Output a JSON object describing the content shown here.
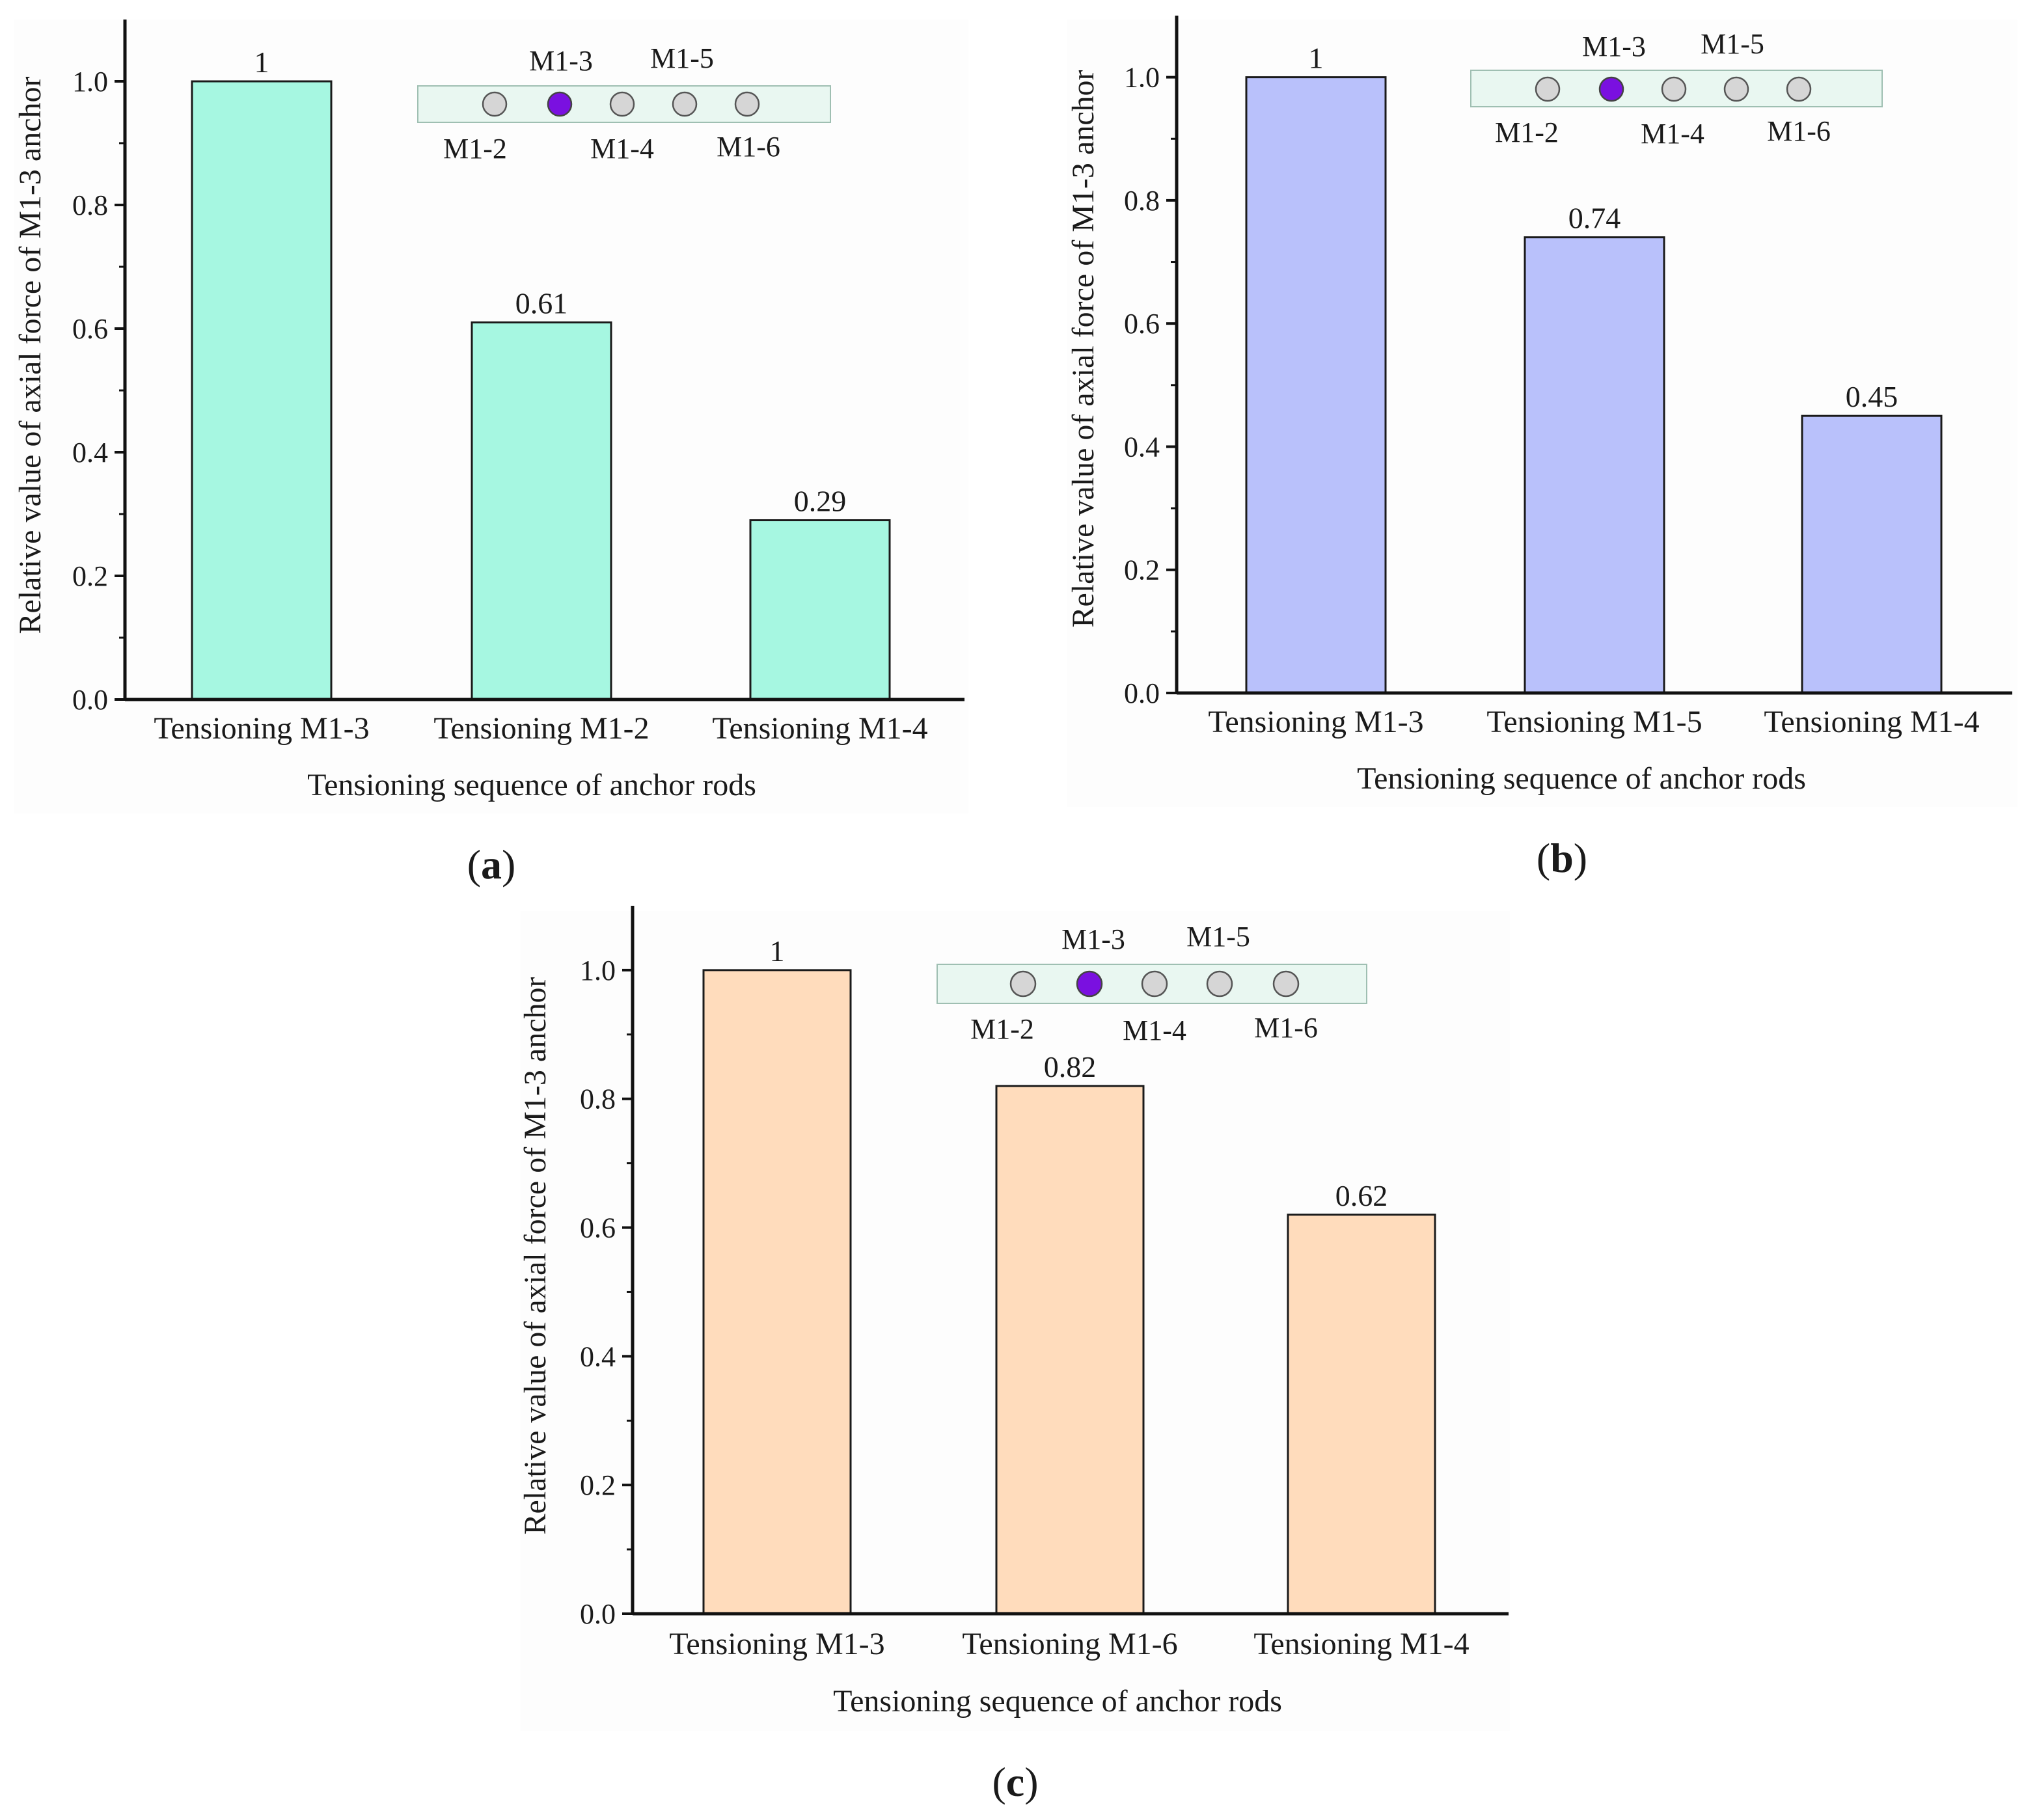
{
  "chart_data": [
    {
      "panel": "a",
      "type": "bar",
      "categories": [
        "Tensioning M1-3",
        "Tensioning M1-2",
        "Tensioning M1-4"
      ],
      "values": [
        1,
        0.61,
        0.29
      ],
      "data_labels": [
        "1",
        "0.61",
        "0.29"
      ],
      "xlabel": "Tensioning sequence of anchor rods",
      "ylabel": "Relative value of axial force of M1-3 anchor",
      "ylim": [
        0,
        1.1
      ],
      "yticks": [
        "0.0",
        "0.2",
        "0.4",
        "0.6",
        "0.8",
        "1.0"
      ],
      "bar_color": "#a6f7e1",
      "inset": {
        "top_labels": [
          "M1-3",
          "M1-5"
        ],
        "bottom_labels": [
          "M1-2",
          "M1-4",
          "M1-6"
        ],
        "highlight_color": "#7a10e0",
        "anchor_color": "#d6d6d6",
        "band_color": "#e9f7f1"
      }
    },
    {
      "panel": "b",
      "type": "bar",
      "categories": [
        "Tensioning M1-3",
        "Tensioning M1-5",
        "Tensioning M1-4"
      ],
      "values": [
        1,
        0.74,
        0.45
      ],
      "data_labels": [
        "1",
        "0.74",
        "0.45"
      ],
      "xlabel": "Tensioning sequence of anchor rods",
      "ylabel": "Relative value of axial force of M1-3 anchor",
      "ylim": [
        0,
        1.1
      ],
      "yticks": [
        "0.0",
        "0.2",
        "0.4",
        "0.6",
        "0.8",
        "1.0"
      ],
      "bar_color": "#b9c1fb",
      "inset": {
        "top_labels": [
          "M1-3",
          "M1-5"
        ],
        "bottom_labels": [
          "M1-2",
          "M1-4",
          "M1-6"
        ],
        "highlight_color": "#7a10e0",
        "anchor_color": "#d6d6d6",
        "band_color": "#e9f7f1"
      }
    },
    {
      "panel": "c",
      "type": "bar",
      "categories": [
        "Tensioning M1-3",
        "Tensioning M1-6",
        "Tensioning M1-4"
      ],
      "values": [
        1,
        0.82,
        0.62
      ],
      "data_labels": [
        "1",
        "0.82",
        "0.62"
      ],
      "xlabel": "Tensioning sequence of anchor rods",
      "ylabel": "Relative value of axial force of M1-3 anchor",
      "ylim": [
        0,
        1.1
      ],
      "yticks": [
        "0.0",
        "0.2",
        "0.4",
        "0.6",
        "0.8",
        "1.0"
      ],
      "bar_color": "#ffdcbc",
      "inset": {
        "top_labels": [
          "M1-3",
          "M1-5"
        ],
        "bottom_labels": [
          "M1-2",
          "M1-4",
          "M1-6"
        ],
        "highlight_color": "#7a10e0",
        "anchor_color": "#d6d6d6",
        "band_color": "#e9f7f1"
      }
    }
  ],
  "panel_letters": [
    "a",
    "b",
    "c"
  ]
}
